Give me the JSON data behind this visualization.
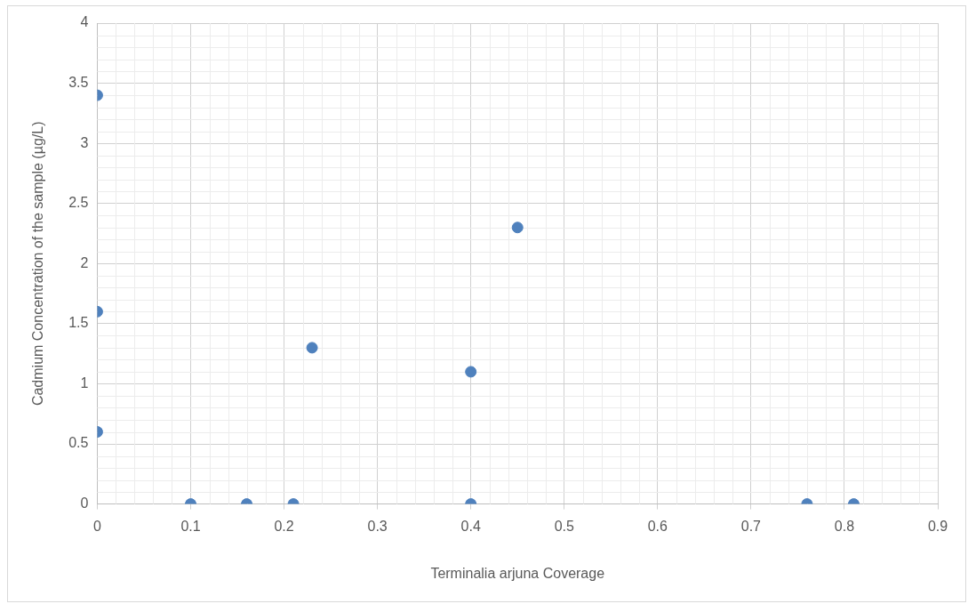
{
  "chart_data": {
    "type": "scatter",
    "xlabel": "Terminalia arjuna Coverage",
    "ylabel": "Cadmium Concentration of the sample (µg/L)",
    "x": [
      0,
      0,
      0,
      0.1,
      0.16,
      0.21,
      0.23,
      0.4,
      0.4,
      0.45,
      0.76,
      0.81
    ],
    "series": [
      {
        "color": "#4f81bd",
        "values": [
          3.4,
          1.6,
          0.6,
          0,
          0,
          0,
          1.3,
          1.1,
          0,
          2.3,
          0,
          0
        ]
      }
    ],
    "xlim": [
      0,
      0.9
    ],
    "xticks": [
      0,
      0.1,
      0.2,
      0.3,
      0.4,
      0.5,
      0.6,
      0.7,
      0.8,
      0.9
    ],
    "ylim": [
      0,
      4
    ],
    "yticks": [
      0,
      0.5,
      1,
      1.5,
      2,
      2.5,
      3,
      3.5,
      4
    ],
    "grid": true,
    "legend": false,
    "marker": "circle"
  }
}
